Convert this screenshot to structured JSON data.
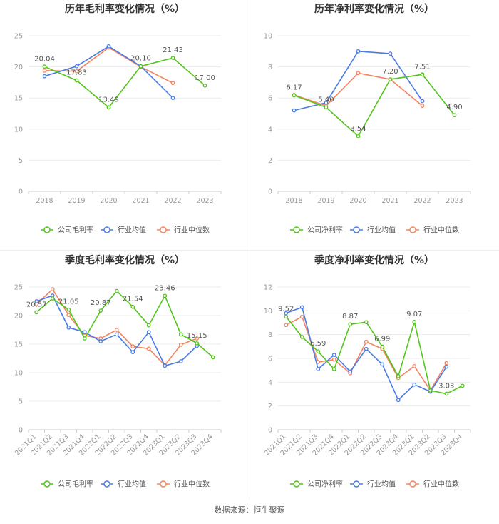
{
  "colors": {
    "company": "#52c41a",
    "avg": "#4b7be5",
    "median": "#f4845f",
    "grid": "#ececec",
    "tick": "#999999"
  },
  "legend_labels_gross": [
    "公司毛利率",
    "行业均值",
    "行业中位数"
  ],
  "legend_labels_net": [
    "公司净利率",
    "行业均值",
    "行业中位数"
  ],
  "source": "数据来源：恒生聚源",
  "chart_data": [
    {
      "type": "line",
      "title": "历年毛利率变化情况（%）",
      "categories": [
        "2018",
        "2019",
        "2020",
        "2021",
        "2022",
        "2023"
      ],
      "ylim": [
        0,
        25
      ],
      "yticks": [
        0,
        5,
        10,
        15,
        20,
        25
      ],
      "series": [
        {
          "name": "公司毛利率",
          "values": [
            20.04,
            17.83,
            13.49,
            20.1,
            21.43,
            17.0
          ]
        },
        {
          "name": "行业均值",
          "values": [
            18.5,
            20.1,
            23.3,
            20.1,
            15.0,
            null
          ]
        },
        {
          "name": "行业中位数",
          "values": [
            19.4,
            19.3,
            23.1,
            20.0,
            17.4,
            null
          ]
        }
      ],
      "labels": [
        {
          "i": 0,
          "text": "20.04",
          "pos": "above"
        },
        {
          "i": 1,
          "text": "17.83",
          "pos": "above"
        },
        {
          "i": 2,
          "text": "13.49",
          "pos": "above"
        },
        {
          "i": 3,
          "text": "20.10",
          "pos": "above"
        },
        {
          "i": 4,
          "text": "21.43",
          "pos": "above"
        },
        {
          "i": 5,
          "text": "17.00",
          "pos": "above"
        }
      ]
    },
    {
      "type": "line",
      "title": "历年净利率变化情况（%）",
      "categories": [
        "2018",
        "2019",
        "2020",
        "2021",
        "2022",
        "2023"
      ],
      "ylim": [
        0,
        10
      ],
      "yticks": [
        0,
        2,
        4,
        6,
        8,
        10
      ],
      "series": [
        {
          "name": "公司净利率",
          "values": [
            6.17,
            5.4,
            3.54,
            7.2,
            7.51,
            4.9
          ]
        },
        {
          "name": "行业均值",
          "values": [
            5.2,
            5.7,
            9.0,
            8.85,
            5.8,
            null
          ]
        },
        {
          "name": "行业中位数",
          "values": [
            6.2,
            5.5,
            7.6,
            7.2,
            5.5,
            null
          ]
        }
      ],
      "labels": [
        {
          "i": 0,
          "text": "6.17",
          "pos": "above"
        },
        {
          "i": 1,
          "text": "5.40",
          "pos": "above"
        },
        {
          "i": 2,
          "text": "3.54",
          "pos": "above"
        },
        {
          "i": 3,
          "text": "7.20",
          "pos": "above"
        },
        {
          "i": 4,
          "text": "7.51",
          "pos": "above"
        },
        {
          "i": 5,
          "text": "4.90",
          "pos": "above"
        }
      ]
    },
    {
      "type": "line",
      "title": "季度毛利率变化情况（%）",
      "categories": [
        "2021Q1",
        "2021Q2",
        "2021Q3",
        "2021Q4",
        "2022Q1",
        "2022Q2",
        "2022Q3",
        "2022Q4",
        "2023Q1",
        "2023Q2",
        "2023Q3",
        "2023Q4"
      ],
      "ylim": [
        0,
        25
      ],
      "yticks": [
        0,
        5,
        10,
        15,
        20,
        25
      ],
      "series": [
        {
          "name": "公司毛利率",
          "values": [
            20.57,
            23.0,
            21.05,
            16.0,
            20.87,
            24.3,
            21.54,
            18.3,
            23.46,
            16.7,
            15.15,
            12.7
          ]
        },
        {
          "name": "行业均值",
          "values": [
            22.5,
            23.5,
            17.9,
            17.1,
            15.5,
            16.7,
            13.6,
            17.1,
            11.2,
            12.0,
            14.7,
            null
          ]
        },
        {
          "name": "行业中位数",
          "values": [
            22.0,
            24.6,
            20.1,
            16.5,
            16.0,
            17.5,
            14.6,
            14.2,
            11.3,
            14.9,
            16.0,
            null
          ]
        }
      ],
      "labels": [
        {
          "i": 0,
          "text": "20.57",
          "pos": "above"
        },
        {
          "i": 2,
          "text": "21.05",
          "pos": "above"
        },
        {
          "i": 4,
          "text": "20.87",
          "pos": "above"
        },
        {
          "i": 6,
          "text": "21.54",
          "pos": "above"
        },
        {
          "i": 8,
          "text": "23.46",
          "pos": "above"
        },
        {
          "i": 10,
          "text": "15.15",
          "pos": "above"
        }
      ]
    },
    {
      "type": "line",
      "title": "季度净利率变化情况（%）",
      "categories": [
        "2021Q1",
        "2021Q2",
        "2021Q3",
        "2021Q4",
        "2022Q1",
        "2022Q2",
        "2022Q3",
        "2022Q4",
        "2023Q1",
        "2023Q2",
        "2023Q3",
        "2023Q4"
      ],
      "ylim": [
        0,
        12
      ],
      "yticks": [
        0,
        2,
        4,
        6,
        8,
        10,
        12
      ],
      "series": [
        {
          "name": "公司净利率",
          "values": [
            9.52,
            7.8,
            6.59,
            5.1,
            8.87,
            9.05,
            6.99,
            4.5,
            9.07,
            3.3,
            3.03,
            3.7
          ]
        },
        {
          "name": "行业均值",
          "values": [
            9.8,
            10.3,
            5.1,
            6.3,
            4.9,
            6.8,
            5.5,
            2.5,
            3.8,
            3.2,
            5.3,
            null
          ]
        },
        {
          "name": "行业中位数",
          "values": [
            8.8,
            9.5,
            5.7,
            5.9,
            4.75,
            7.4,
            6.8,
            4.35,
            5.35,
            3.3,
            5.6,
            null
          ]
        }
      ],
      "labels": [
        {
          "i": 0,
          "text": "9.52",
          "pos": "above"
        },
        {
          "i": 2,
          "text": "6.59",
          "pos": "above"
        },
        {
          "i": 4,
          "text": "8.87",
          "pos": "above"
        },
        {
          "i": 6,
          "text": "6.99",
          "pos": "above"
        },
        {
          "i": 8,
          "text": "9.07",
          "pos": "above"
        },
        {
          "i": 10,
          "text": "3.03",
          "pos": "above"
        }
      ]
    }
  ]
}
